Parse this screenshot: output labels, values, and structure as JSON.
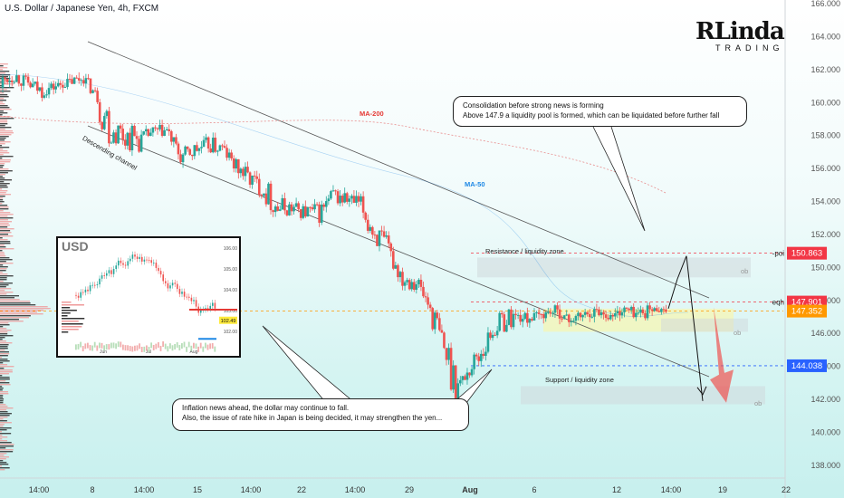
{
  "header": {
    "title": "U.S. Dollar / Japanese Yen, 4h, FXCM"
  },
  "logo": {
    "main": "RLinda",
    "sub": "TRADING"
  },
  "chart_data": {
    "type": "candlestick",
    "symbol": "U.S. Dollar / Japanese Yen",
    "interval": "4h",
    "source": "FXCM",
    "ylim": [
      137.5,
      166.0
    ],
    "y_ticks": [
      "166.000",
      "164.000",
      "162.000",
      "160.000",
      "158.000",
      "156.000",
      "154.000",
      "152.000",
      "150.000",
      "148.000",
      "146.000",
      "144.000",
      "142.000",
      "140.000",
      "138.000"
    ],
    "x_ticks": [
      "14:00",
      "8",
      "14:00",
      "15",
      "14:00",
      "22",
      "14:00",
      "29",
      "Aug",
      "6",
      "12",
      "14:00",
      "19",
      "22"
    ],
    "price_path": [
      [
        161.6,
        160.9
      ],
      [
        162.0,
        161.3
      ],
      [
        161.5,
        160.7
      ],
      [
        161.0,
        160.4
      ],
      [
        161.2,
        160.8
      ],
      [
        161.5,
        161.0
      ],
      [
        161.8,
        161.2
      ],
      [
        161.7,
        158.9
      ],
      [
        159.3,
        157.6
      ],
      [
        158.8,
        157.2
      ],
      [
        158.1,
        157.5
      ],
      [
        158.5,
        157.9
      ],
      [
        158.7,
        157.9
      ],
      [
        157.1,
        156.2
      ],
      [
        157.5,
        156.7
      ],
      [
        157.9,
        157.0
      ],
      [
        157.6,
        156.8
      ],
      [
        156.6,
        155.6
      ],
      [
        155.9,
        154.9
      ],
      [
        155.5,
        153.9
      ],
      [
        154.2,
        153.1
      ],
      [
        154.0,
        153.2
      ],
      [
        153.9,
        152.8
      ],
      [
        153.8,
        152.8
      ],
      [
        154.9,
        153.8
      ],
      [
        154.5,
        153.7
      ],
      [
        155.1,
        152.6
      ],
      [
        152.9,
        151.4
      ],
      [
        151.5,
        150.3
      ],
      [
        149.9,
        148.9
      ],
      [
        149.8,
        148.5
      ],
      [
        148.6,
        146.5
      ],
      [
        146.4,
        143.6
      ],
      [
        143.2,
        142.6
      ],
      [
        142.9,
        144.9
      ],
      [
        145.0,
        146.0
      ],
      [
        146.0,
        147.4
      ],
      [
        147.3,
        146.8
      ],
      [
        147.1,
        146.7
      ],
      [
        147.3,
        146.9
      ],
      [
        147.6,
        147.2
      ],
      [
        147.0,
        146.6
      ],
      [
        147.3,
        146.9
      ],
      [
        147.5,
        147.2
      ],
      [
        147.2,
        146.8
      ],
      [
        147.7,
        147.2
      ],
      [
        147.5,
        146.9
      ],
      [
        147.4,
        147.5
      ],
      [
        147.5,
        147.35
      ]
    ],
    "price_labels": [
      {
        "value": 150.863,
        "text": "150.863",
        "color": "#f23645",
        "tag": "-poi"
      },
      {
        "value": 147.901,
        "text": "147.901",
        "color": "#f23645",
        "tag": "eqh"
      },
      {
        "value": 147.352,
        "text": "147.352",
        "color": "#ff9800",
        "tag": ""
      },
      {
        "value": 144.038,
        "text": "144.038",
        "color": "#2962ff",
        "tag": ""
      }
    ],
    "annotations": {
      "channel": "Descending channel",
      "ma200": "MA-200",
      "ma50": "MA-50",
      "resistance": "Resistance / liquidity zone",
      "support": "Support / liquidity zone",
      "ob": "ob"
    },
    "inset": {
      "title": "USD",
      "y_ticks": [
        "106.00",
        "105.00",
        "104.00",
        "103.00",
        "102.00"
      ],
      "x_ticks": [
        "Jun",
        "Jul",
        "Aug"
      ],
      "last_value": "102.49"
    }
  },
  "callouts": {
    "top": "Consolidation before strong news is forming\nAbove 147.9 a liquidity pool is formed, which can be liquidated before further fall",
    "bottom": "Inflation news ahead, the dollar may continue to fall.\nAlso, the issue of rate hike in Japan is being decided, it may strengthen the yen..."
  },
  "colors": {
    "up": "#26a69a",
    "down": "#ef5350",
    "ma200": "#e57373",
    "ma50": "#1e88e5",
    "arrow": "#ef5350"
  }
}
